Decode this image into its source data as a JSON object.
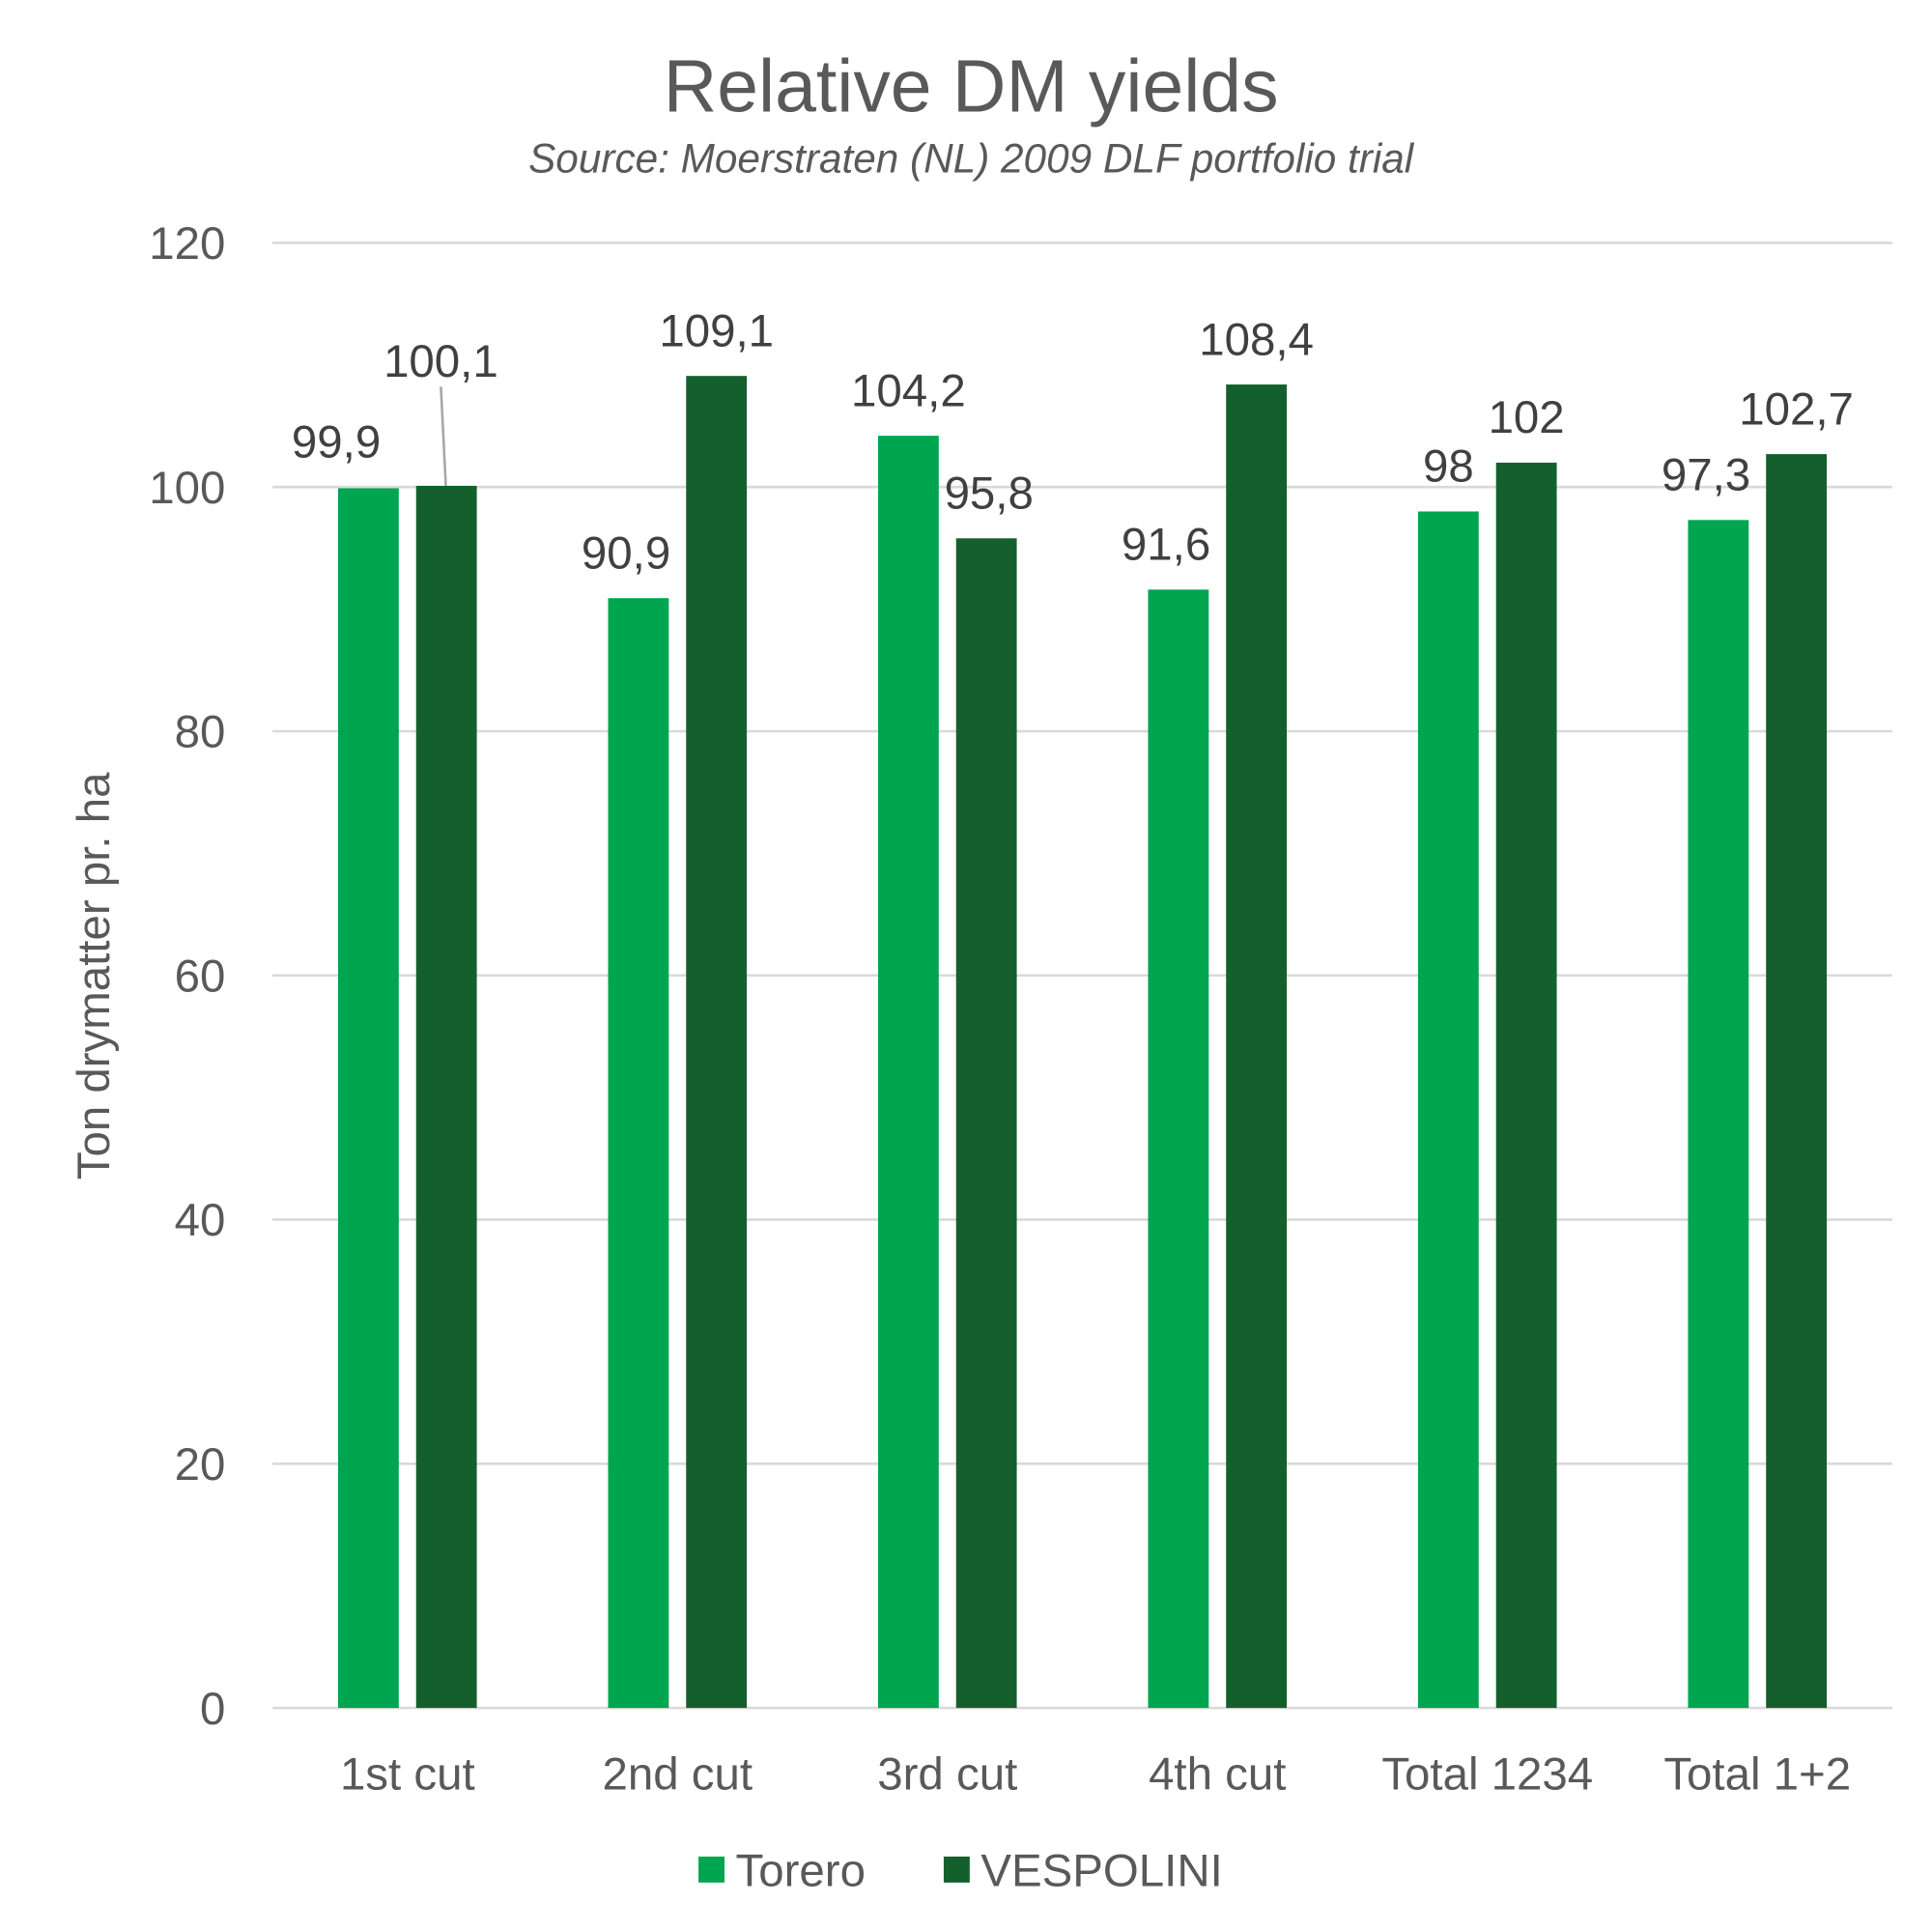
{
  "chart_data": {
    "type": "bar",
    "title": "Relative DM yields",
    "subtitle": "Source: Moerstraten (NL) 2009 DLF portfolio trial",
    "xlabel": "",
    "ylabel": "Ton drymatter pr. ha",
    "ylim": [
      0,
      120
    ],
    "yticks": [
      "0",
      "20",
      "40",
      "60",
      "80",
      "100",
      "120"
    ],
    "grid": true,
    "legend_position": "bottom",
    "categories": [
      "1st cut",
      "2nd cut",
      "3rd cut",
      "4th cut",
      "Total 1234",
      "Total 1+2"
    ],
    "series": [
      {
        "name": "Torero",
        "color": "#00A550",
        "values": [
          99.9,
          90.9,
          104.2,
          91.6,
          98,
          97.3
        ],
        "labels": [
          "99,9",
          "90,9",
          "104,2",
          "91,6",
          "98",
          "97,3"
        ]
      },
      {
        "name": "VESPOLINI",
        "color": "#14602D",
        "values": [
          100.1,
          109.1,
          95.8,
          108.4,
          102,
          102.7
        ],
        "labels": [
          "100,1",
          "109,1",
          "95,8",
          "108,4",
          "102",
          "102,7"
        ]
      }
    ]
  }
}
